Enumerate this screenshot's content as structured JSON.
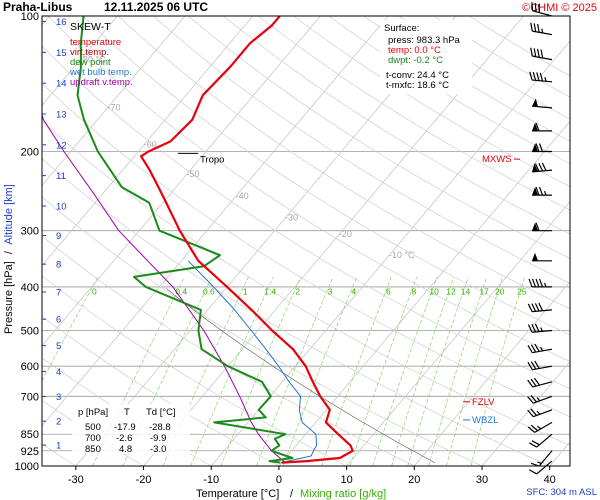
{
  "header": {
    "station": "Praha-Libus",
    "datetime": "12.11.2025 06 UTC",
    "copyright": "©CHMI © 2025"
  },
  "chart_data": {
    "type": "line",
    "subtype": "skew-t log-p",
    "title": "SKEW-T",
    "xlabel_temp": "Temperature [°C]",
    "xlabel_sep": "/",
    "xlabel_mix": "Mixing ratio [g/kg]",
    "ylabel_pressure": "Pressure [hPa]",
    "ylabel_sep": "/",
    "ylabel_altitude": "Altitude [km]",
    "x_ticks": [
      -30,
      -20,
      -10,
      0,
      10,
      20,
      30,
      40
    ],
    "x_range": [
      -35,
      43
    ],
    "pressure_ticks": [
      100,
      200,
      300,
      400,
      500,
      600,
      700,
      850,
      925,
      1000
    ],
    "pressure_range": [
      100,
      1000
    ],
    "altitude_ticks_km": [
      1,
      2,
      3,
      4,
      5,
      6,
      7,
      8,
      9,
      10,
      11,
      12,
      13,
      14,
      15,
      16
    ],
    "isotherm_labels": [
      "-80 °C",
      "-70",
      "-60",
      "-50",
      "-40",
      "-30",
      "-20",
      "-10 °C"
    ],
    "mixing_ratio_labels": [
      "0",
      "0.4",
      "0.6",
      "1",
      "1.4",
      "2",
      "3",
      "4",
      "6",
      "8",
      "10",
      "12",
      "14",
      "17",
      "20",
      "25"
    ],
    "legend": [
      {
        "label": "temperature",
        "color": "#e8000b"
      },
      {
        "label": "virt.temp.",
        "color": "#b00000"
      },
      {
        "label": "dew point",
        "color": "#1a8a1a"
      },
      {
        "label": "wet bulb temp.",
        "color": "#1f77d0"
      },
      {
        "label": "updraft v.temp.",
        "color": "#9c00a8"
      }
    ],
    "surface": {
      "title": "Surface:",
      "press": "press: 983.3 hPa",
      "temp": "temp: 0.0 °C",
      "dwpt": "dwpt: -0.2 °C",
      "tconv": "t-conv: 24.4 °C",
      "tmxfc": "t-mxfc: 18.6 °C"
    },
    "table": {
      "headers": [
        "p [hPa]",
        "T",
        "Td [°C]"
      ],
      "rows": [
        [
          "500",
          "-17.9",
          "-28.8"
        ],
        [
          "700",
          "-2.6",
          "-9.9"
        ],
        [
          "850",
          "4.8",
          "-3.0"
        ]
      ]
    },
    "levels": {
      "tropo": "Tropo",
      "mxws": "MXWS",
      "fzlv": "FZLV",
      "wbzl": "WBZL"
    },
    "level_pressures": {
      "tropo": 202,
      "mxws": 208,
      "fzlv": 720,
      "wbzl": 790
    },
    "series": [
      {
        "name": "temperature",
        "points": [
          [
            983,
            0.0
          ],
          [
            975,
            3.5
          ],
          [
            960,
            8.0
          ],
          [
            925,
            9.0
          ],
          [
            900,
            8.0
          ],
          [
            850,
            4.8
          ],
          [
            800,
            1.5
          ],
          [
            750,
            0.5
          ],
          [
            700,
            -2.6
          ],
          [
            650,
            -5.5
          ],
          [
            600,
            -8.5
          ],
          [
            550,
            -12.5
          ],
          [
            500,
            -17.9
          ],
          [
            450,
            -23.5
          ],
          [
            400,
            -30
          ],
          [
            350,
            -37.5
          ],
          [
            300,
            -44
          ],
          [
            250,
            -51
          ],
          [
            220,
            -56
          ],
          [
            205,
            -59
          ],
          [
            200,
            -58.5
          ],
          [
            190,
            -56.5
          ],
          [
            170,
            -56
          ],
          [
            150,
            -57.5
          ],
          [
            130,
            -57
          ],
          [
            115,
            -57
          ],
          [
            105,
            -56
          ],
          [
            100,
            -56
          ]
        ]
      },
      {
        "name": "dew point",
        "points": [
          [
            983,
            -0.2
          ],
          [
            975,
            -2
          ],
          [
            960,
            1
          ],
          [
            925,
            -3
          ],
          [
            900,
            -2.5
          ],
          [
            870,
            -4
          ],
          [
            850,
            -3.0
          ],
          [
            800,
            -15
          ],
          [
            780,
            -8
          ],
          [
            750,
            -10
          ],
          [
            700,
            -9.9
          ],
          [
            650,
            -13
          ],
          [
            600,
            -20
          ],
          [
            550,
            -26
          ],
          [
            500,
            -28.8
          ],
          [
            450,
            -31
          ],
          [
            400,
            -42
          ],
          [
            380,
            -45
          ],
          [
            360,
            -36
          ],
          [
            340,
            -35
          ],
          [
            300,
            -47
          ],
          [
            260,
            -52
          ],
          [
            240,
            -58
          ],
          [
            200,
            -66
          ],
          [
            170,
            -72
          ],
          [
            150,
            -76
          ],
          [
            130,
            -79
          ],
          [
            115,
            -82
          ],
          [
            100,
            -85
          ]
        ]
      },
      {
        "name": "wet bulb temp.",
        "points": [
          [
            983,
            -0.1
          ],
          [
            950,
            3.5
          ],
          [
            925,
            3.2
          ],
          [
            900,
            3
          ],
          [
            850,
            1.5
          ],
          [
            800,
            -2
          ],
          [
            750,
            -4
          ],
          [
            700,
            -5.5
          ],
          [
            650,
            -9
          ],
          [
            600,
            -12.5
          ],
          [
            550,
            -16.5
          ],
          [
            500,
            -21
          ],
          [
            450,
            -26
          ],
          [
            400,
            -32
          ],
          [
            350,
            -39
          ]
        ]
      },
      {
        "name": "updraft v.temp.",
        "points": [
          [
            983,
            0.5
          ],
          [
            925,
            -3
          ],
          [
            850,
            -7
          ],
          [
            800,
            -9.5
          ],
          [
            700,
            -14.5
          ],
          [
            600,
            -20.5
          ],
          [
            500,
            -28
          ],
          [
            400,
            -38
          ],
          [
            350,
            -45
          ],
          [
            300,
            -53
          ],
          [
            250,
            -61
          ],
          [
            200,
            -71
          ],
          [
            170,
            -78
          ],
          [
            150,
            -82
          ]
        ]
      }
    ],
    "wind_barbs": [
      {
        "p": 975,
        "dir": 230,
        "kt": 10
      },
      {
        "p": 925,
        "dir": 220,
        "kt": 15
      },
      {
        "p": 850,
        "dir": 230,
        "kt": 20
      },
      {
        "p": 800,
        "dir": 240,
        "kt": 25
      },
      {
        "p": 750,
        "dir": 250,
        "kt": 25
      },
      {
        "p": 700,
        "dir": 250,
        "kt": 25
      },
      {
        "p": 650,
        "dir": 255,
        "kt": 30
      },
      {
        "p": 600,
        "dir": 260,
        "kt": 30
      },
      {
        "p": 550,
        "dir": 260,
        "kt": 35
      },
      {
        "p": 500,
        "dir": 265,
        "kt": 35
      },
      {
        "p": 450,
        "dir": 265,
        "kt": 40
      },
      {
        "p": 400,
        "dir": 270,
        "kt": 45
      },
      {
        "p": 350,
        "dir": 270,
        "kt": 50
      },
      {
        "p": 300,
        "dir": 270,
        "kt": 60
      },
      {
        "p": 250,
        "dir": 270,
        "kt": 75
      },
      {
        "p": 220,
        "dir": 265,
        "kt": 80
      },
      {
        "p": 200,
        "dir": 270,
        "kt": 70
      },
      {
        "p": 180,
        "dir": 270,
        "kt": 60
      },
      {
        "p": 160,
        "dir": 275,
        "kt": 50
      },
      {
        "p": 140,
        "dir": 275,
        "kt": 45
      },
      {
        "p": 125,
        "dir": 280,
        "kt": 40
      },
      {
        "p": 110,
        "dir": 280,
        "kt": 35
      },
      {
        "p": 100,
        "dir": 285,
        "kt": 30
      }
    ],
    "sfc_label": "SFC: 304 m ASL"
  },
  "colors": {
    "temperature": "#e8000b",
    "dewpoint": "#1a8a1a",
    "wetbulb": "#1f77d0",
    "updraft": "#9c00a8",
    "isotherm": "#c8c8c8",
    "mixing": "#8fd16f",
    "altitude": "#1a3ec8"
  }
}
